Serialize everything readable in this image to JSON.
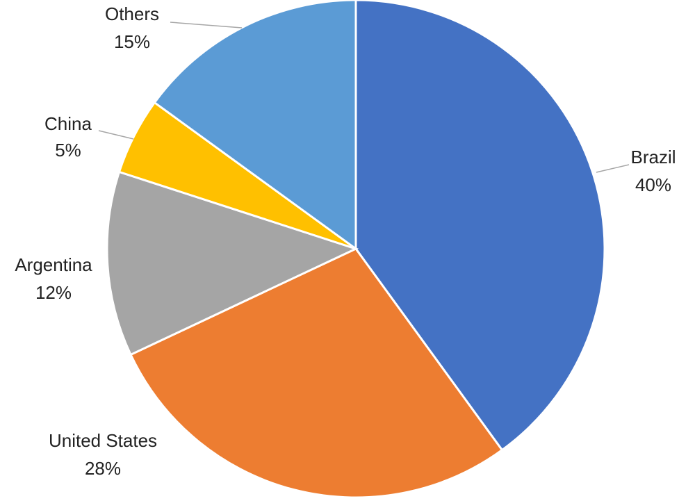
{
  "chart_data": {
    "type": "pie",
    "categories": [
      "Brazil",
      "United States",
      "Argentina",
      "China",
      "Others"
    ],
    "values": [
      40,
      28,
      12,
      5,
      15
    ],
    "value_labels": [
      "40%",
      "28%",
      "12%",
      "5%",
      "15%"
    ],
    "colors": [
      "#4472c4",
      "#ed7d31",
      "#a5a5a5",
      "#ffc000",
      "#5b9bd5"
    ]
  }
}
